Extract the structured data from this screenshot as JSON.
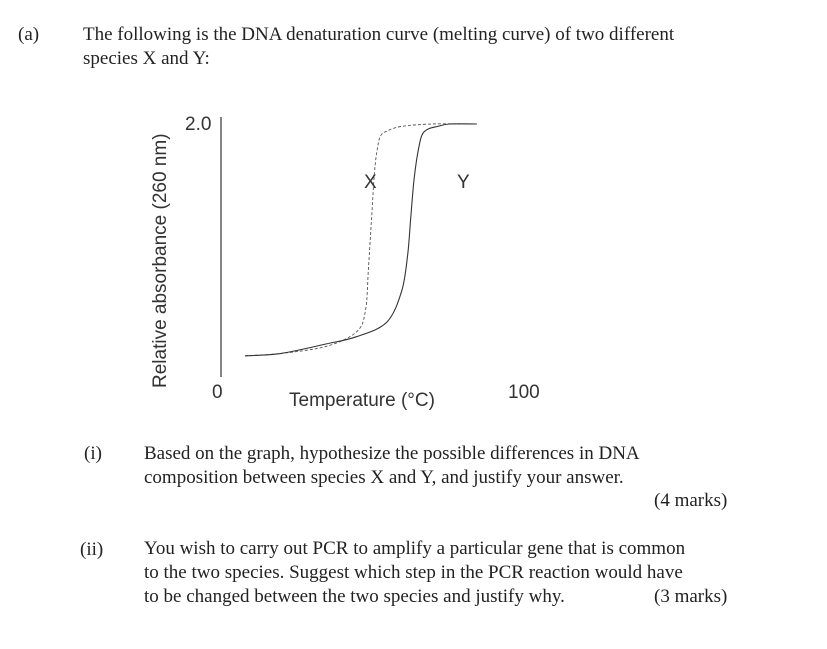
{
  "part_label": "(a)",
  "intro": {
    "line1": "The following is the DNA denaturation curve (melting curve) of two different",
    "line2": "species X and Y:"
  },
  "chart_data": {
    "type": "line",
    "title": "",
    "xlabel": "Temperature (°C)",
    "ylabel": "Relative absorbance (260 nm)",
    "x_tick_labels": [
      "0",
      "100"
    ],
    "y_tick_labels": [
      "2.0"
    ],
    "xlim": [
      0,
      100
    ],
    "ylim": [
      1.0,
      2.0
    ],
    "grid": false,
    "legend": "curve labels placed beside each curve",
    "series": [
      {
        "name": "X",
        "style": "dashed",
        "x": [
          8,
          20,
          35,
          45,
          48,
          49,
          50,
          51,
          52,
          53,
          55,
          60,
          70,
          80,
          85
        ],
        "y": [
          1.03,
          1.04,
          1.07,
          1.13,
          1.22,
          1.4,
          1.6,
          1.8,
          1.9,
          1.95,
          1.97,
          1.99,
          2.0,
          2.0,
          2.0
        ]
      },
      {
        "name": "Y",
        "style": "solid",
        "x": [
          8,
          20,
          35,
          45,
          55,
          60,
          62,
          63,
          64,
          65,
          66,
          67,
          69,
          72,
          76,
          85
        ],
        "y": [
          1.03,
          1.04,
          1.08,
          1.11,
          1.17,
          1.3,
          1.45,
          1.6,
          1.75,
          1.85,
          1.92,
          1.96,
          1.98,
          1.99,
          2.0,
          2.0
        ]
      }
    ]
  },
  "questions": [
    {
      "number": "(i)",
      "lines": [
        "Based on the graph, hypothesize the possible differences in DNA",
        "composition between species X and Y, and justify your answer."
      ],
      "marks": "(4 marks)"
    },
    {
      "number": "(ii)",
      "lines": [
        "You wish to carry out PCR to amplify a particular gene that is common",
        "to the two species. Suggest which step in the PCR reaction would have",
        "to be changed between the two species and justify why."
      ],
      "marks": "(3 marks)"
    }
  ]
}
